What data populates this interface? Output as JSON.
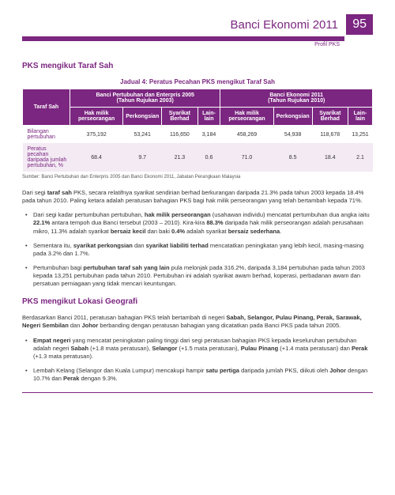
{
  "header": {
    "title": "Banci Ekonomi 2011",
    "page_number": "95",
    "subtitle": "Profil PKS",
    "brand_color": "#7b2680"
  },
  "section1": {
    "heading": "PKS mengikut Taraf Sah",
    "table_caption": "Jadual 4: Peratus Pecahan PKS mengikut Taraf Sah",
    "source": "Sumber: Banci Pertubuhan dan Enterpris 2005 dan Banci Ekonomi 2011, Jabatan Perangkaan Malaysia"
  },
  "table": {
    "type": "table",
    "header_bg": "#7b2680",
    "header_fg": "#ffffff",
    "alt_row_bg": "#f3eaf4",
    "col_group_left": "Taraf Sah",
    "group_a": "Banci Pertubuhan dan Enterpris 2005\n(Tahun Rujukan 2003)",
    "group_b": "Banci Ekonomi 2011\n(Tahun Rujukan 2010)",
    "sub_cols": [
      "Hak milik perseorangan",
      "Perkongsian",
      "Syarikat Berhad",
      "Lain-lain",
      "Hak milik perseorangan",
      "Perkongsian",
      "Syarikat Berhad",
      "Lain-lain"
    ],
    "rows": [
      {
        "label": "Bilangan pertubuhan",
        "cells": [
          "375,192",
          "53,241",
          "116,650",
          "3,184",
          "458,269",
          "54,938",
          "118,678",
          "13,251"
        ]
      },
      {
        "label": "Peratus pecahan daripada jumlah pertubuhan, %",
        "cells": [
          "68.4",
          "9.7",
          "21.3",
          "0.6",
          "71.0",
          "8.5",
          "18.4",
          "2.1"
        ]
      }
    ]
  },
  "body1": {
    "para": "Dari segi <b>taraf sah</b> PKS, secara relatifnya syarikat sendirian berhad berkurangan daripada 21.3% pada tahun 2003 kepada 18.4% pada tahun 2010. Paling ketara adalah peratusan bahagian PKS bagi hak milik perseorangan yang telah bertambah kepada 71%.",
    "bullets": [
      "Dari segi kadar pertumbuhan pertubuhan, <b>hak milik perseorangan</b> (usahawan individu) mencatat pertumbuhan dua angka iaitu <b>22.1%</b> antara tempoh dua Banci tersebut (2003 – 2010). Kira-kira <b>88.3%</b> daripada hak milik perseorangan adalah perusahaan mikro, 11.3% adalah syarikat <b>bersaiz kecil</b> dan baki <b>0.4%</b> adalah syarikat <b>bersaiz sederhana</b>.",
      "Sementara itu, <b>syarikat perkongsian</b> dan <b>syarikat liabiliti terhad</b> mencatatkan peningkatan yang lebih kecil, masing-masing pada 3.2% dan 1.7%.",
      "Pertumbuhan bagi <b>pertubuhan taraf sah yang lain</b> pula melonjak pada 316.2%, daripada 3,184 pertubuhan pada tahun 2003 kepada 13,251 pertubuhan pada tahun 2010. Pertubuhan ini adalah syarikat awam berhad, koperasi, perbadanan awam dan persatuan perniagaan yang tidak mencari keuntungan."
    ]
  },
  "section2": {
    "heading": "PKS mengikut Lokasi Geografi",
    "para": "Berdasarkan Banci 2011, peratusan bahagian PKS telah bertambah di negeri <b>Sabah, Selangor, Pulau Pinang, Perak, Sarawak, Negeri Sembilan</b> dan <b>Johor</b> berbanding dengan peratusan bahagian yang dicatatkan pada Banci PKS pada tahun 2005.",
    "bullets": [
      "<b>Empat negeri</b> yang mencatat peningkatan paling tinggi dari segi peratusan bahagian PKS kepada keseluruhan pertubuhan adalah negeri <b>Sabah</b> (+1.8 mata peratusan), <b>Selangor</b> (+1.5 mata peratusan), <b>Pulau Pinang</b> (+1.4 mata peratusan) dan <b>Perak</b> (+1.3 mata peratusan).",
      "Lembah Kelang (Selangor dan Kuala Lumpur) mencakupi hampir <b>satu pertiga</b> daripada jumlah PKS, diikuti oleh <b>Johor</b> dengan 10.7% dan <b>Perak</b> dengan 9.3%."
    ]
  }
}
